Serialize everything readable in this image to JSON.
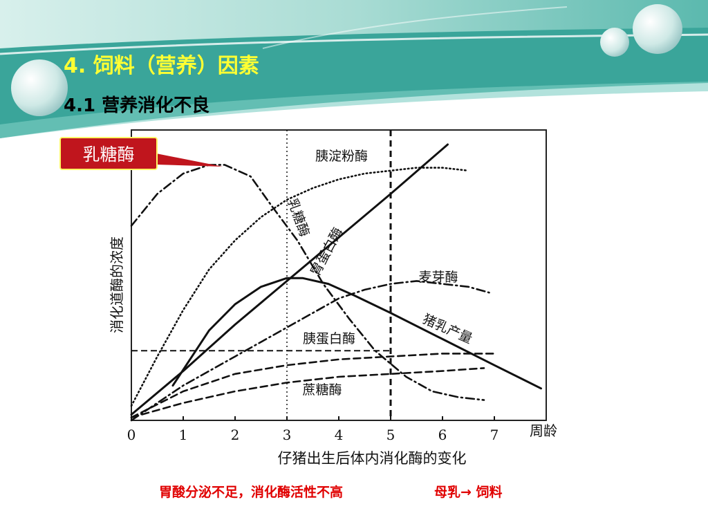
{
  "slide": {
    "title": "4.  饲料（营养）因素",
    "subtitle": "4.1 营养消化不良",
    "callout": "乳糖酶",
    "caption_left": "胃酸分泌不足，消化酶活性不高",
    "caption_right": "母乳→ 饲料",
    "colors": {
      "banner_teal": "#3aa59a",
      "title_yellow": "#ffff33",
      "callout_red": "#c0151d",
      "caption_red": "#e00000"
    }
  },
  "chart_data": {
    "type": "line",
    "xlabel": "仔猪出生后体内消化酶的变化",
    "ylabel": "消化道酶的浓度",
    "x_unit_label": "周龄",
    "xlim": [
      0,
      8
    ],
    "ylim": [
      0,
      100
    ],
    "x_ticks": [
      "0",
      "1",
      "2",
      "3",
      "4",
      "5",
      "6",
      "7"
    ],
    "y_ticks": [],
    "grid": false,
    "reference_lines": {
      "vertical_x": [
        3,
        5
      ],
      "horizontal_y": [
        24
      ]
    },
    "series": [
      {
        "name": "乳糖酶",
        "style": "dashdot",
        "x": [
          0,
          0.5,
          1.0,
          1.5,
          1.8,
          2.3,
          2.7,
          3.2,
          3.7,
          4.2,
          4.7,
          5.3,
          5.8,
          6.3,
          6.8
        ],
        "y": [
          67,
          78,
          85,
          88,
          88,
          84,
          74,
          62,
          47,
          35,
          24,
          15,
          10,
          8,
          7
        ]
      },
      {
        "name": "胰淀粉酶",
        "style": "dotted",
        "x": [
          0,
          0.5,
          1.0,
          1.5,
          2.0,
          2.5,
          3.0,
          3.5,
          4.0,
          4.5,
          5.0,
          5.5,
          6.0,
          6.5
        ],
        "y": [
          5,
          22,
          38,
          52,
          62,
          70,
          76,
          80,
          83,
          85,
          86,
          87,
          87,
          86
        ]
      },
      {
        "name": "胃蛋白酶",
        "style": "solid",
        "x": [
          0,
          1,
          2,
          3,
          4,
          5,
          6.1
        ],
        "y": [
          2,
          17,
          33,
          48,
          63,
          78,
          95
        ]
      },
      {
        "name": "麦芽酶",
        "style": "dashdot",
        "x": [
          0,
          1,
          2,
          3,
          4,
          4.5,
          5.0,
          5.5,
          6.0,
          6.5,
          6.9
        ],
        "y": [
          0,
          12,
          22,
          32,
          42,
          45,
          47,
          48,
          47,
          46,
          44
        ]
      },
      {
        "name": "猪乳产量",
        "style": "solid",
        "x": [
          0.8,
          1.5,
          2.0,
          2.5,
          3.0,
          3.3,
          3.8,
          4.3,
          5.0,
          6.0,
          7.0,
          7.9
        ],
        "y": [
          12,
          31,
          40,
          46,
          49,
          49,
          47,
          43,
          37,
          28,
          19,
          11
        ]
      },
      {
        "name": "胰蛋白酶",
        "style": "dashed",
        "x": [
          0,
          1,
          2,
          3,
          4,
          5,
          6,
          7
        ],
        "y": [
          1,
          10,
          16,
          19,
          21,
          22,
          23,
          23
        ]
      },
      {
        "name": "蔗糖酶",
        "style": "dashed",
        "x": [
          0,
          1,
          2,
          3,
          4,
          5,
          6,
          6.8
        ],
        "y": [
          1,
          6,
          10,
          13,
          15,
          16,
          17,
          18
        ]
      }
    ],
    "labels": [
      {
        "text": "胰淀粉酶"
      },
      {
        "text": "乳糖酶"
      },
      {
        "text": "胃蛋白酶"
      },
      {
        "text": "麦芽酶"
      },
      {
        "text": "猪乳产量"
      },
      {
        "text": "胰蛋白酶"
      },
      {
        "text": "蔗糖酶"
      }
    ]
  }
}
